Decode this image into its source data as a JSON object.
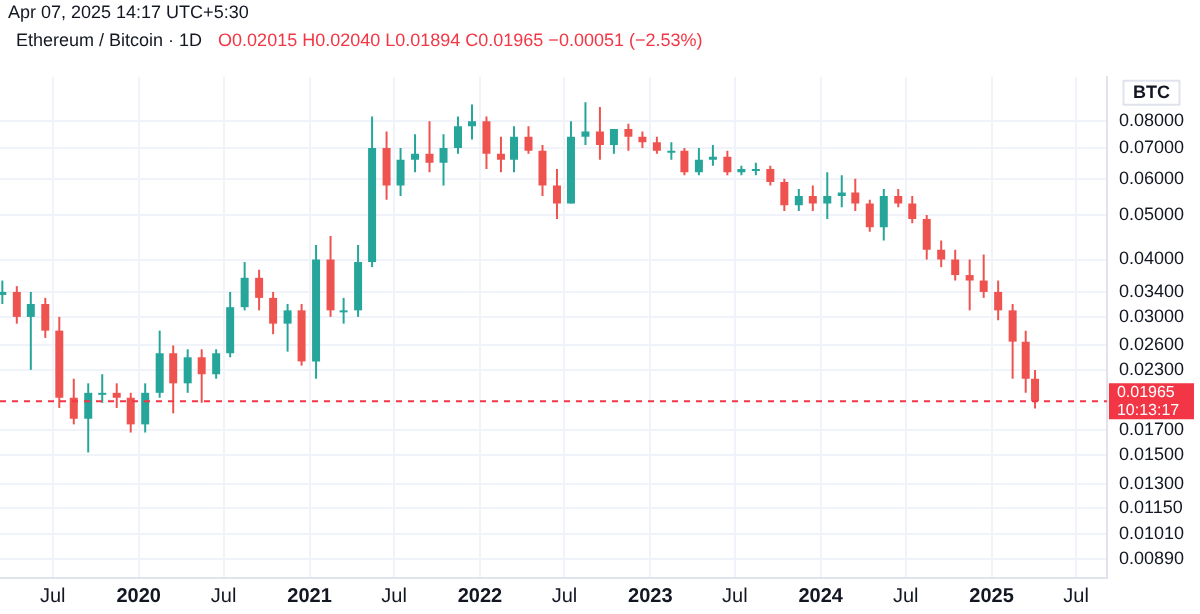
{
  "chart_data": {
    "type": "candlestick",
    "title": "Ethereum / Bitcoin · 1D",
    "subtitle": "Apr 07, 2025 14:17 UTC+5:30",
    "ylabel": "BTC",
    "annotations": [
      "O0.02015 H0.02040 L0.01894 C0.01965 −0.00051 (−2.53%)"
    ],
    "x": [
      "2019-03-15",
      "2019-04-15",
      "2019-05-15",
      "2019-06-15",
      "2019-07-15",
      "2019-08-15",
      "2019-09-15",
      "2019-10-15",
      "2019-11-15",
      "2019-12-15",
      "2020-01-15",
      "2020-02-15",
      "2020-03-15",
      "2020-04-15",
      "2020-05-15",
      "2020-06-15",
      "2020-07-15",
      "2020-08-15",
      "2020-09-15",
      "2020-10-15",
      "2020-11-15",
      "2020-12-15",
      "2021-01-15",
      "2021-02-15",
      "2021-03-15",
      "2021-04-15",
      "2021-05-15",
      "2021-06-15",
      "2021-07-15",
      "2021-08-15",
      "2021-09-15",
      "2021-10-15",
      "2021-11-15",
      "2021-12-15",
      "2022-01-15",
      "2022-02-15",
      "2022-03-15",
      "2022-04-15",
      "2022-05-15",
      "2022-06-15",
      "2022-07-15",
      "2022-08-15",
      "2022-09-15",
      "2022-10-15",
      "2022-11-15",
      "2022-12-15",
      "2023-01-15",
      "2023-02-15",
      "2023-03-15",
      "2023-04-15",
      "2023-05-15",
      "2023-06-15",
      "2023-07-15",
      "2023-08-15",
      "2023-09-15",
      "2023-10-15",
      "2023-11-15",
      "2023-12-15",
      "2024-01-15",
      "2024-02-15",
      "2024-03-15",
      "2024-04-15",
      "2024-05-15",
      "2024-06-15",
      "2024-07-15",
      "2024-08-15",
      "2024-09-15",
      "2024-10-15",
      "2024-11-15",
      "2024-12-15",
      "2025-01-15",
      "2025-02-15",
      "2025-03-15",
      "2025-04-04"
    ],
    "ohlc": [
      [
        0.0335,
        0.036,
        0.032,
        0.034
      ],
      [
        0.034,
        0.035,
        0.029,
        0.03
      ],
      [
        0.03,
        0.034,
        0.023,
        0.032
      ],
      [
        0.032,
        0.033,
        0.027,
        0.028
      ],
      [
        0.028,
        0.03,
        0.019,
        0.02
      ],
      [
        0.02,
        0.022,
        0.0175,
        0.018
      ],
      [
        0.018,
        0.0215,
        0.0152,
        0.0205
      ],
      [
        0.0205,
        0.0225,
        0.0195,
        0.0205
      ],
      [
        0.0205,
        0.0215,
        0.019,
        0.02
      ],
      [
        0.02,
        0.0205,
        0.0168,
        0.0175
      ],
      [
        0.0175,
        0.0215,
        0.0168,
        0.0205
      ],
      [
        0.0205,
        0.028,
        0.02,
        0.025
      ],
      [
        0.025,
        0.026,
        0.0185,
        0.0215
      ],
      [
        0.0215,
        0.0255,
        0.0205,
        0.0245
      ],
      [
        0.0245,
        0.0255,
        0.0195,
        0.0225
      ],
      [
        0.0225,
        0.0255,
        0.022,
        0.025
      ],
      [
        0.025,
        0.034,
        0.0245,
        0.0315
      ],
      [
        0.0315,
        0.0395,
        0.031,
        0.0365
      ],
      [
        0.0365,
        0.038,
        0.031,
        0.033
      ],
      [
        0.033,
        0.034,
        0.0275,
        0.029
      ],
      [
        0.029,
        0.032,
        0.0252,
        0.031
      ],
      [
        0.031,
        0.032,
        0.0235,
        0.024
      ],
      [
        0.024,
        0.043,
        0.022,
        0.04
      ],
      [
        0.04,
        0.045,
        0.03,
        0.031
      ],
      [
        0.031,
        0.033,
        0.029,
        0.031
      ],
      [
        0.031,
        0.043,
        0.03,
        0.0395
      ],
      [
        0.0395,
        0.082,
        0.0385,
        0.07
      ],
      [
        0.07,
        0.076,
        0.054,
        0.058
      ],
      [
        0.058,
        0.07,
        0.055,
        0.066
      ],
      [
        0.066,
        0.075,
        0.062,
        0.068
      ],
      [
        0.068,
        0.08,
        0.062,
        0.065
      ],
      [
        0.065,
        0.075,
        0.058,
        0.07
      ],
      [
        0.07,
        0.082,
        0.068,
        0.078
      ],
      [
        0.078,
        0.087,
        0.073,
        0.08
      ],
      [
        0.08,
        0.082,
        0.063,
        0.068
      ],
      [
        0.068,
        0.074,
        0.062,
        0.066
      ],
      [
        0.066,
        0.078,
        0.062,
        0.074
      ],
      [
        0.074,
        0.078,
        0.068,
        0.069
      ],
      [
        0.069,
        0.071,
        0.055,
        0.058
      ],
      [
        0.058,
        0.063,
        0.049,
        0.053
      ],
      [
        0.053,
        0.08,
        0.053,
        0.074
      ],
      [
        0.074,
        0.088,
        0.071,
        0.076
      ],
      [
        0.076,
        0.086,
        0.066,
        0.071
      ],
      [
        0.071,
        0.077,
        0.068,
        0.077
      ],
      [
        0.077,
        0.079,
        0.069,
        0.074
      ],
      [
        0.074,
        0.076,
        0.07,
        0.072
      ],
      [
        0.072,
        0.074,
        0.068,
        0.069
      ],
      [
        0.069,
        0.072,
        0.066,
        0.069
      ],
      [
        0.069,
        0.07,
        0.061,
        0.062
      ],
      [
        0.062,
        0.07,
        0.061,
        0.066
      ],
      [
        0.066,
        0.071,
        0.064,
        0.067
      ],
      [
        0.067,
        0.069,
        0.061,
        0.062
      ],
      [
        0.062,
        0.064,
        0.061,
        0.063
      ],
      [
        0.063,
        0.065,
        0.061,
        0.063
      ],
      [
        0.063,
        0.064,
        0.058,
        0.059
      ],
      [
        0.059,
        0.06,
        0.051,
        0.0525
      ],
      [
        0.0525,
        0.057,
        0.051,
        0.055
      ],
      [
        0.055,
        0.058,
        0.051,
        0.053
      ],
      [
        0.053,
        0.062,
        0.049,
        0.055
      ],
      [
        0.055,
        0.061,
        0.052,
        0.056
      ],
      [
        0.056,
        0.06,
        0.051,
        0.053
      ],
      [
        0.053,
        0.054,
        0.046,
        0.047
      ],
      [
        0.047,
        0.057,
        0.044,
        0.055
      ],
      [
        0.055,
        0.057,
        0.052,
        0.053
      ],
      [
        0.053,
        0.055,
        0.048,
        0.049
      ],
      [
        0.049,
        0.05,
        0.04,
        0.042
      ],
      [
        0.042,
        0.044,
        0.0385,
        0.04
      ],
      [
        0.04,
        0.042,
        0.036,
        0.037
      ],
      [
        0.037,
        0.04,
        0.031,
        0.036
      ],
      [
        0.036,
        0.041,
        0.033,
        0.034
      ],
      [
        0.034,
        0.036,
        0.0295,
        0.031
      ],
      [
        0.031,
        0.032,
        0.022,
        0.0265
      ],
      [
        0.0265,
        0.028,
        0.0205,
        0.022
      ],
      [
        0.022,
        0.023,
        0.01894,
        0.01965
      ]
    ],
    "xlim": [
      "2019-03-10",
      "2025-09-05"
    ],
    "xticks": [
      {
        "value": "2019-07-01",
        "label": "Jul"
      },
      {
        "value": "2020-01-01",
        "label": "2020"
      },
      {
        "value": "2020-07-01",
        "label": "Jul"
      },
      {
        "value": "2021-01-01",
        "label": "2021"
      },
      {
        "value": "2021-07-01",
        "label": "Jul"
      },
      {
        "value": "2022-01-01",
        "label": "2022"
      },
      {
        "value": "2022-07-01",
        "label": "Jul"
      },
      {
        "value": "2023-01-01",
        "label": "2023"
      },
      {
        "value": "2023-07-01",
        "label": "Jul"
      },
      {
        "value": "2024-01-01",
        "label": "2024"
      },
      {
        "value": "2024-07-01",
        "label": "Jul"
      },
      {
        "value": "2025-01-01",
        "label": "2025"
      },
      {
        "value": "2025-07-01",
        "label": "Jul"
      }
    ],
    "ylim": [
      0.0081,
      0.1
    ],
    "yticks": [
      {
        "value": 0.0089,
        "label": "0.00890"
      },
      {
        "value": 0.0101,
        "label": "0.01010"
      },
      {
        "value": 0.0115,
        "label": "0.01150"
      },
      {
        "value": 0.013,
        "label": "0.01300"
      },
      {
        "value": 0.015,
        "label": "0.01500"
      },
      {
        "value": 0.017,
        "label": "0.01700"
      },
      {
        "value": 0.023,
        "label": "0.02300"
      },
      {
        "value": 0.026,
        "label": "0.02600"
      },
      {
        "value": 0.03,
        "label": "0.03000"
      },
      {
        "value": 0.034,
        "label": "0.03400"
      },
      {
        "value": 0.04,
        "label": "0.04000"
      },
      {
        "value": 0.05,
        "label": "0.05000"
      },
      {
        "value": 0.06,
        "label": "0.06000"
      },
      {
        "value": 0.07,
        "label": "0.07000"
      },
      {
        "value": 0.08,
        "label": "0.08000"
      }
    ],
    "log": true,
    "grid": true,
    "ref_lines": [
      {
        "axis": "y",
        "value": 0.01965,
        "label": "0.01965\n10:13:17",
        "color": "#f23645",
        "line_style": "dashed"
      }
    ]
  }
}
